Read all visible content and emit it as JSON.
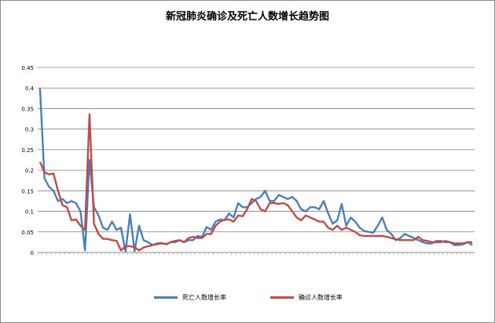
{
  "chart_data": {
    "type": "line",
    "title": "新冠肺炎确诊及死亡人数增长趋势图",
    "ylim": [
      0,
      0.45
    ],
    "yticks": [
      "0",
      "0.05",
      "0.1",
      "0.15",
      "0.2",
      "0.25",
      "0.3",
      "0.35",
      "0.4",
      "0.45"
    ],
    "grid": "horizontal",
    "legend_position": "bottom",
    "x_count": 97,
    "series": [
      {
        "name": "死亡人数增长率",
        "color": "#4a7ebb",
        "values": [
          0.4,
          0.18,
          0.16,
          0.15,
          0.125,
          0.13,
          0.12,
          0.125,
          0.12,
          0.1,
          0.005,
          0.225,
          0.11,
          0.09,
          0.06,
          0.055,
          0.075,
          0.055,
          0.06,
          0.002,
          0.093,
          0.003,
          0.065,
          0.03,
          0.025,
          0.018,
          0.022,
          0.023,
          0.02,
          0.025,
          0.025,
          0.03,
          0.025,
          0.03,
          0.03,
          0.04,
          0.038,
          0.062,
          0.055,
          0.075,
          0.08,
          0.078,
          0.095,
          0.085,
          0.12,
          0.11,
          0.11,
          0.12,
          0.13,
          0.135,
          0.15,
          0.125,
          0.125,
          0.14,
          0.135,
          0.13,
          0.135,
          0.125,
          0.105,
          0.1,
          0.11,
          0.11,
          0.105,
          0.125,
          0.095,
          0.07,
          0.078,
          0.118,
          0.065,
          0.085,
          0.075,
          0.06,
          0.052,
          0.05,
          0.048,
          0.065,
          0.085,
          0.055,
          0.045,
          0.03,
          0.035,
          0.045,
          0.04,
          0.035,
          0.03,
          0.025,
          0.022,
          0.022,
          0.028,
          0.028,
          0.025,
          0.025,
          0.018,
          0.018,
          0.02,
          0.025,
          0.018
        ]
      },
      {
        "name": "确诊人数增长率",
        "color": "#be4b48",
        "values": [
          0.22,
          0.195,
          0.19,
          0.192,
          0.15,
          0.115,
          0.11,
          0.078,
          0.08,
          0.065,
          0.055,
          0.336,
          0.07,
          0.045,
          0.033,
          0.033,
          0.03,
          0.028,
          0.005,
          0.015,
          0.015,
          0.013,
          0.005,
          0.012,
          0.015,
          0.018,
          0.02,
          0.022,
          0.02,
          0.025,
          0.028,
          0.03,
          0.025,
          0.035,
          0.038,
          0.035,
          0.035,
          0.045,
          0.045,
          0.065,
          0.075,
          0.08,
          0.08,
          0.075,
          0.09,
          0.088,
          0.105,
          0.13,
          0.125,
          0.105,
          0.1,
          0.12,
          0.12,
          0.118,
          0.12,
          0.115,
          0.1,
          0.085,
          0.078,
          0.09,
          0.085,
          0.08,
          0.075,
          0.075,
          0.06,
          0.055,
          0.065,
          0.055,
          0.06,
          0.055,
          0.05,
          0.042,
          0.04,
          0.04,
          0.04,
          0.04,
          0.04,
          0.038,
          0.035,
          0.032,
          0.03,
          0.03,
          0.03,
          0.03,
          0.038,
          0.03,
          0.028,
          0.025,
          0.025,
          0.025,
          0.028,
          0.025,
          0.022,
          0.022,
          0.022,
          0.025,
          0.025
        ]
      }
    ]
  }
}
